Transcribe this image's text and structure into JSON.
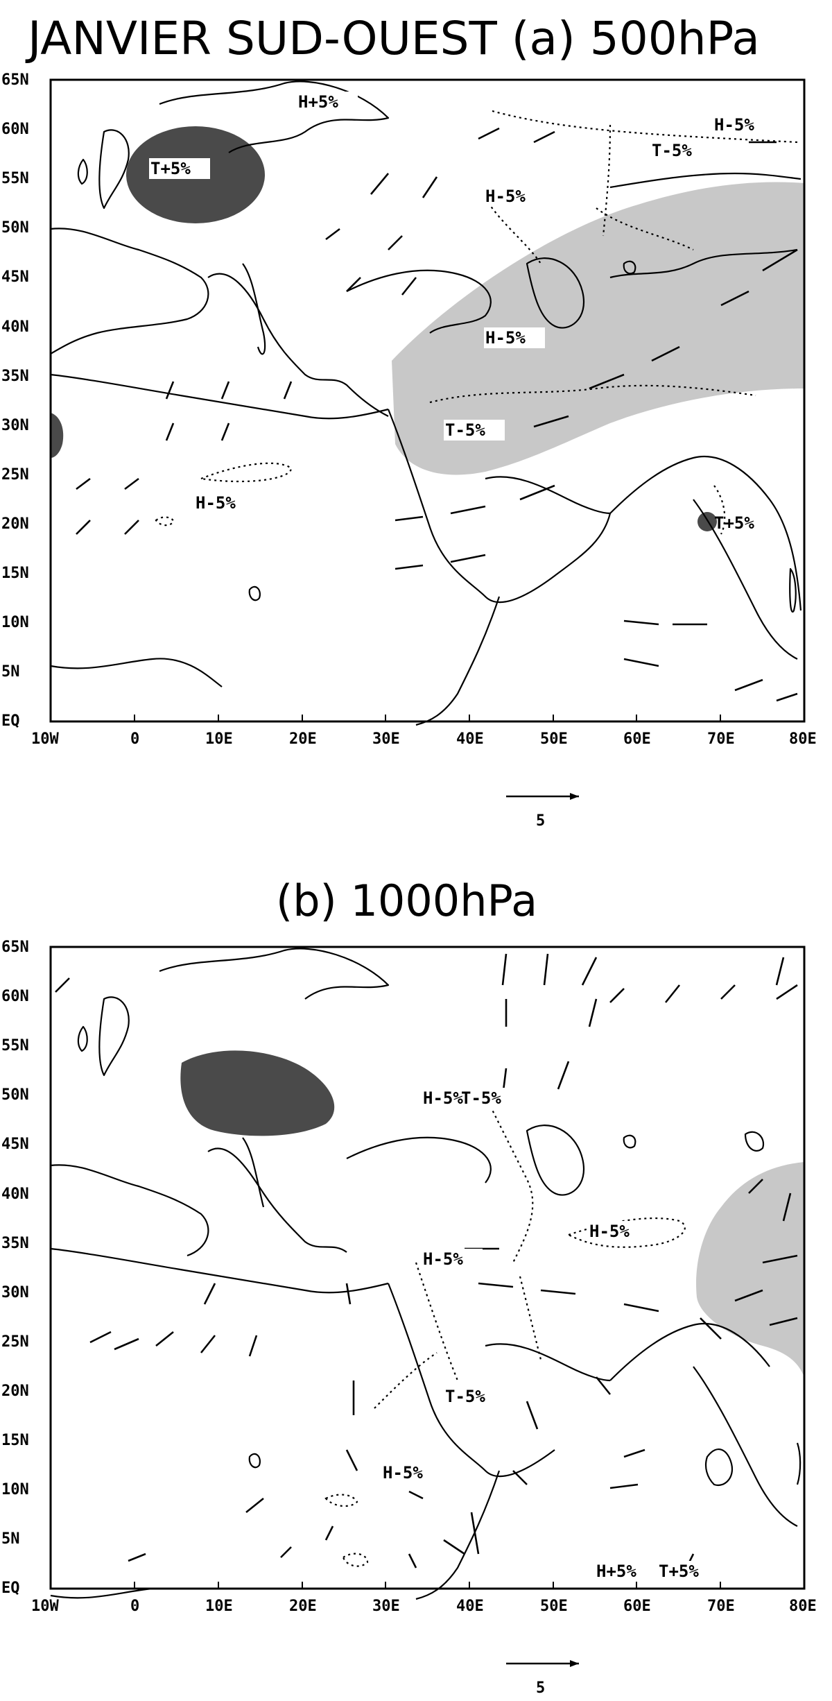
{
  "figure": {
    "title": "JANVIER SUD-OUEST (a) 500hPa",
    "panels": [
      {
        "id": "a",
        "title": "",
        "x_ticks": [
          "10W",
          "0",
          "10E",
          "20E",
          "30E",
          "40E",
          "50E",
          "60E",
          "70E",
          "80E"
        ],
        "y_ticks": [
          "65N",
          "60N",
          "55N",
          "50N",
          "45N",
          "40N",
          "35N",
          "30N",
          "25N",
          "20N",
          "15N",
          "10N",
          "5N",
          "EQ"
        ],
        "labels": [
          "H+5%",
          "H-5%",
          "T-5%",
          "H-5%",
          "T+5%",
          "H-5%",
          "T-5%",
          "H-5%",
          "T+5%"
        ],
        "scale_label": "5",
        "colors": {
          "positive_anomaly": "#4a4a4a",
          "negative_anomaly": "#c8c8c8"
        }
      },
      {
        "id": "b",
        "title": "(b) 1000hPa",
        "x_ticks": [
          "10W",
          "0",
          "10E",
          "20E",
          "30E",
          "40E",
          "50E",
          "60E",
          "70E",
          "80E"
        ],
        "y_ticks": [
          "65N",
          "60N",
          "55N",
          "50N",
          "45N",
          "40N",
          "35N",
          "30N",
          "25N",
          "20N",
          "15N",
          "10N",
          "5N",
          "EQ"
        ],
        "labels": [
          "H-5%",
          "T-5%",
          "H-5%",
          "H-5%",
          "T-5%",
          "H-5%",
          "H+5%",
          "T+5%"
        ],
        "scale_label": "5",
        "colors": {
          "positive_anomaly": "#4a4a4a",
          "negative_anomaly": "#c8c8c8"
        }
      }
    ]
  }
}
